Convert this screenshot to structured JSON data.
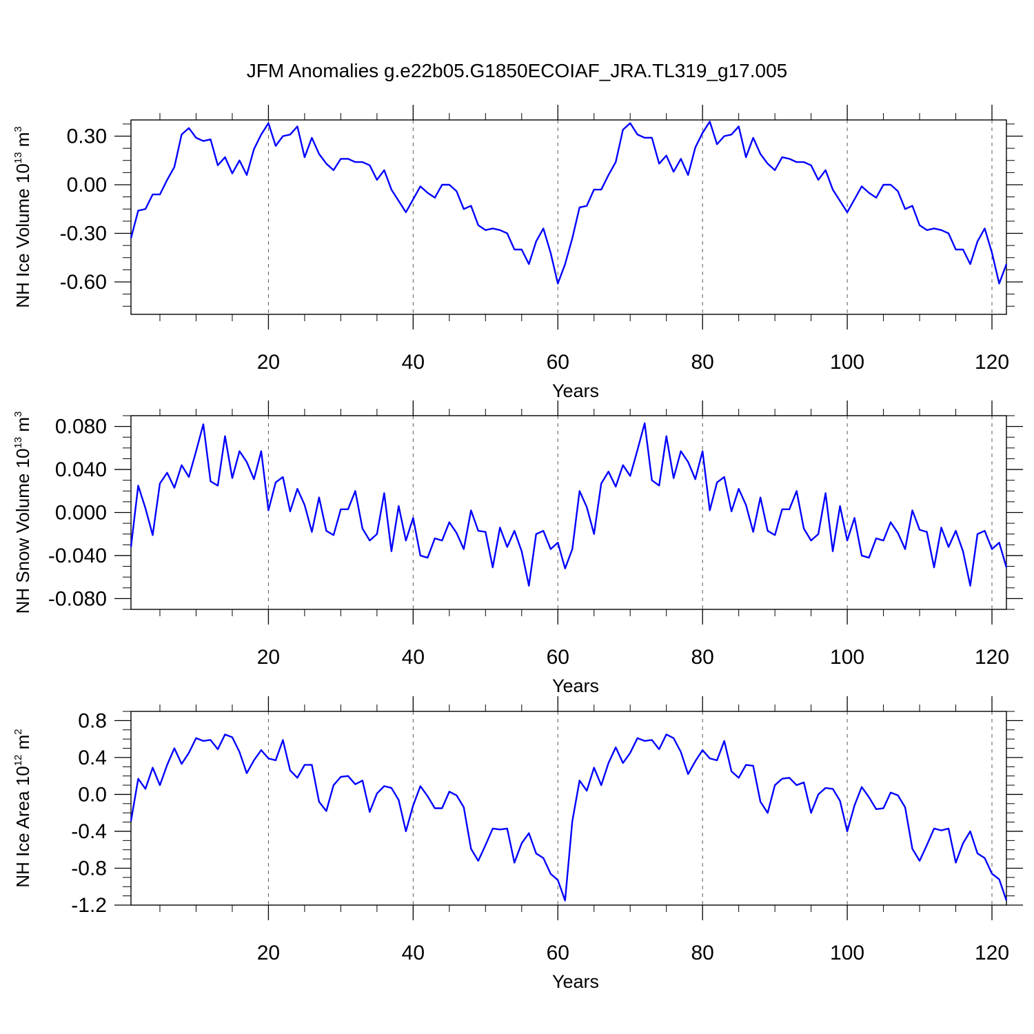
{
  "chart_data": {
    "title": "JFM Anomalies g.e22b05.G1850ECOIAF_JRA.TL319_g17.005",
    "panels": [
      {
        "type": "line",
        "ylabel": {
          "main": "NH Ice Volume 10",
          "exp": "13",
          "unit": " m",
          "unit_exp": "3"
        },
        "xlabel": "Years",
        "xlim": [
          1,
          122
        ],
        "ylim": [
          -0.8,
          0.4
        ],
        "xticks": [
          20,
          40,
          60,
          80,
          100,
          120
        ],
        "xtick_labels": [
          "20",
          "40",
          "60",
          "80",
          "100",
          "120"
        ],
        "yticks": [
          -0.6,
          -0.3,
          0.0,
          0.3
        ],
        "ytick_labels": [
          "-0.60",
          "-0.30",
          "0.00",
          "0.30"
        ],
        "color": "#0000ff",
        "values": [
          -0.33,
          -0.16,
          -0.15,
          -0.06,
          -0.06,
          0.03,
          0.11,
          0.31,
          0.35,
          0.29,
          0.27,
          0.28,
          0.12,
          0.17,
          0.07,
          0.15,
          0.06,
          0.22,
          0.31,
          0.38,
          0.24,
          0.3,
          0.31,
          0.36,
          0.17,
          0.29,
          0.19,
          0.13,
          0.09,
          0.16,
          0.16,
          0.14,
          0.14,
          0.12,
          0.03,
          0.09,
          -0.03,
          -0.1,
          -0.17,
          -0.09,
          -0.01,
          -0.05,
          -0.08,
          0.0,
          0.0,
          -0.04,
          -0.15,
          -0.13,
          -0.25,
          -0.28,
          -0.27,
          -0.28,
          -0.3,
          -0.4,
          -0.4,
          -0.49,
          -0.35,
          -0.27,
          -0.42,
          -0.61,
          -0.49,
          -0.33,
          -0.14,
          -0.13,
          -0.03,
          -0.03,
          0.06,
          0.14,
          0.34,
          0.38,
          0.31,
          0.29,
          0.29,
          0.13,
          0.18,
          0.08,
          0.16,
          0.06,
          0.23,
          0.32,
          0.39,
          0.25,
          0.3,
          0.31,
          0.36,
          0.17,
          0.29,
          0.19,
          0.13,
          0.09,
          0.17,
          0.16,
          0.14,
          0.14,
          0.12,
          0.03,
          0.09,
          -0.03,
          -0.1,
          -0.17,
          -0.09,
          -0.01,
          -0.05,
          -0.08,
          0.0,
          0.0,
          -0.04,
          -0.15,
          -0.13,
          -0.25,
          -0.28,
          -0.27,
          -0.28,
          -0.3,
          -0.4,
          -0.4,
          -0.49,
          -0.35,
          -0.27,
          -0.42,
          -0.61,
          -0.49
        ]
      },
      {
        "type": "line",
        "ylabel": {
          "main": "NH Snow Volume 10",
          "exp": "13",
          "unit": " m",
          "unit_exp": "3"
        },
        "xlabel": "Years",
        "xlim": [
          1,
          122
        ],
        "ylim": [
          -0.09,
          0.09
        ],
        "xticks": [
          20,
          40,
          60,
          80,
          100,
          120
        ],
        "xtick_labels": [
          "20",
          "40",
          "60",
          "80",
          "100",
          "120"
        ],
        "yticks": [
          -0.08,
          -0.04,
          0.0,
          0.04,
          0.08
        ],
        "ytick_labels": [
          "-0.080",
          "-0.040",
          "0.000",
          "0.040",
          "0.080"
        ],
        "color": "#0000ff",
        "values": [
          -0.032,
          0.025,
          0.004,
          -0.021,
          0.027,
          0.037,
          0.023,
          0.044,
          0.033,
          0.057,
          0.082,
          0.029,
          0.025,
          0.071,
          0.032,
          0.057,
          0.047,
          0.031,
          0.057,
          0.002,
          0.028,
          0.033,
          0.001,
          0.022,
          0.007,
          -0.018,
          0.014,
          -0.017,
          -0.021,
          0.003,
          0.003,
          0.02,
          -0.015,
          -0.026,
          -0.02,
          0.018,
          -0.036,
          0.006,
          -0.026,
          -0.005,
          -0.04,
          -0.042,
          -0.024,
          -0.026,
          -0.009,
          -0.019,
          -0.034,
          0.002,
          -0.017,
          -0.018,
          -0.051,
          -0.014,
          -0.032,
          -0.017,
          -0.036,
          -0.068,
          -0.02,
          -0.017,
          -0.034,
          -0.028,
          -0.052,
          -0.034,
          0.02,
          0.005,
          -0.02,
          0.027,
          0.038,
          0.024,
          0.044,
          0.034,
          0.058,
          0.083,
          0.03,
          0.025,
          0.071,
          0.032,
          0.057,
          0.047,
          0.031,
          0.057,
          0.002,
          0.028,
          0.033,
          0.001,
          0.022,
          0.007,
          -0.018,
          0.014,
          -0.017,
          -0.021,
          0.003,
          0.003,
          0.02,
          -0.015,
          -0.026,
          -0.02,
          0.018,
          -0.036,
          0.006,
          -0.026,
          -0.005,
          -0.04,
          -0.042,
          -0.024,
          -0.026,
          -0.009,
          -0.019,
          -0.034,
          0.002,
          -0.016,
          -0.018,
          -0.051,
          -0.014,
          -0.032,
          -0.017,
          -0.036,
          -0.068,
          -0.02,
          -0.017,
          -0.034,
          -0.028,
          -0.051
        ]
      },
      {
        "type": "line",
        "ylabel": {
          "main": "NH Ice Area 10",
          "exp": "12",
          "unit": " m",
          "unit_exp": "2"
        },
        "xlabel": "Years",
        "xlim": [
          1,
          122
        ],
        "ylim": [
          -1.2,
          0.9
        ],
        "xticks": [
          20,
          40,
          60,
          80,
          100,
          120
        ],
        "xtick_labels": [
          "20",
          "40",
          "60",
          "80",
          "100",
          "120"
        ],
        "yticks": [
          -1.2,
          -0.8,
          -0.4,
          0.0,
          0.4,
          0.8
        ],
        "ytick_labels": [
          "-1.2",
          "-0.8",
          "-0.4",
          "0.0",
          "0.4",
          "0.8"
        ],
        "color": "#0000ff",
        "values": [
          -0.29,
          0.17,
          0.06,
          0.29,
          0.1,
          0.32,
          0.5,
          0.33,
          0.45,
          0.61,
          0.58,
          0.59,
          0.49,
          0.65,
          0.62,
          0.46,
          0.23,
          0.37,
          0.48,
          0.39,
          0.37,
          0.59,
          0.26,
          0.18,
          0.32,
          0.32,
          -0.08,
          -0.18,
          0.1,
          0.19,
          0.2,
          0.11,
          0.15,
          -0.19,
          0.01,
          0.09,
          0.07,
          -0.06,
          -0.4,
          -0.12,
          0.09,
          -0.02,
          -0.15,
          -0.15,
          0.03,
          -0.01,
          -0.14,
          -0.59,
          -0.72,
          -0.55,
          -0.37,
          -0.38,
          -0.37,
          -0.74,
          -0.53,
          -0.42,
          -0.64,
          -0.69,
          -0.86,
          -0.93,
          -1.15,
          -0.29,
          0.15,
          0.04,
          0.29,
          0.1,
          0.34,
          0.51,
          0.34,
          0.45,
          0.61,
          0.58,
          0.59,
          0.49,
          0.65,
          0.61,
          0.46,
          0.22,
          0.36,
          0.48,
          0.39,
          0.37,
          0.58,
          0.25,
          0.18,
          0.32,
          0.31,
          -0.08,
          -0.2,
          0.1,
          0.17,
          0.18,
          0.1,
          0.13,
          -0.2,
          0.0,
          0.07,
          0.06,
          -0.07,
          -0.4,
          -0.12,
          0.08,
          -0.03,
          -0.16,
          -0.15,
          0.02,
          -0.01,
          -0.14,
          -0.59,
          -0.72,
          -0.55,
          -0.37,
          -0.39,
          -0.37,
          -0.74,
          -0.53,
          -0.4,
          -0.64,
          -0.69,
          -0.86,
          -0.92,
          -1.15
        ]
      }
    ]
  }
}
